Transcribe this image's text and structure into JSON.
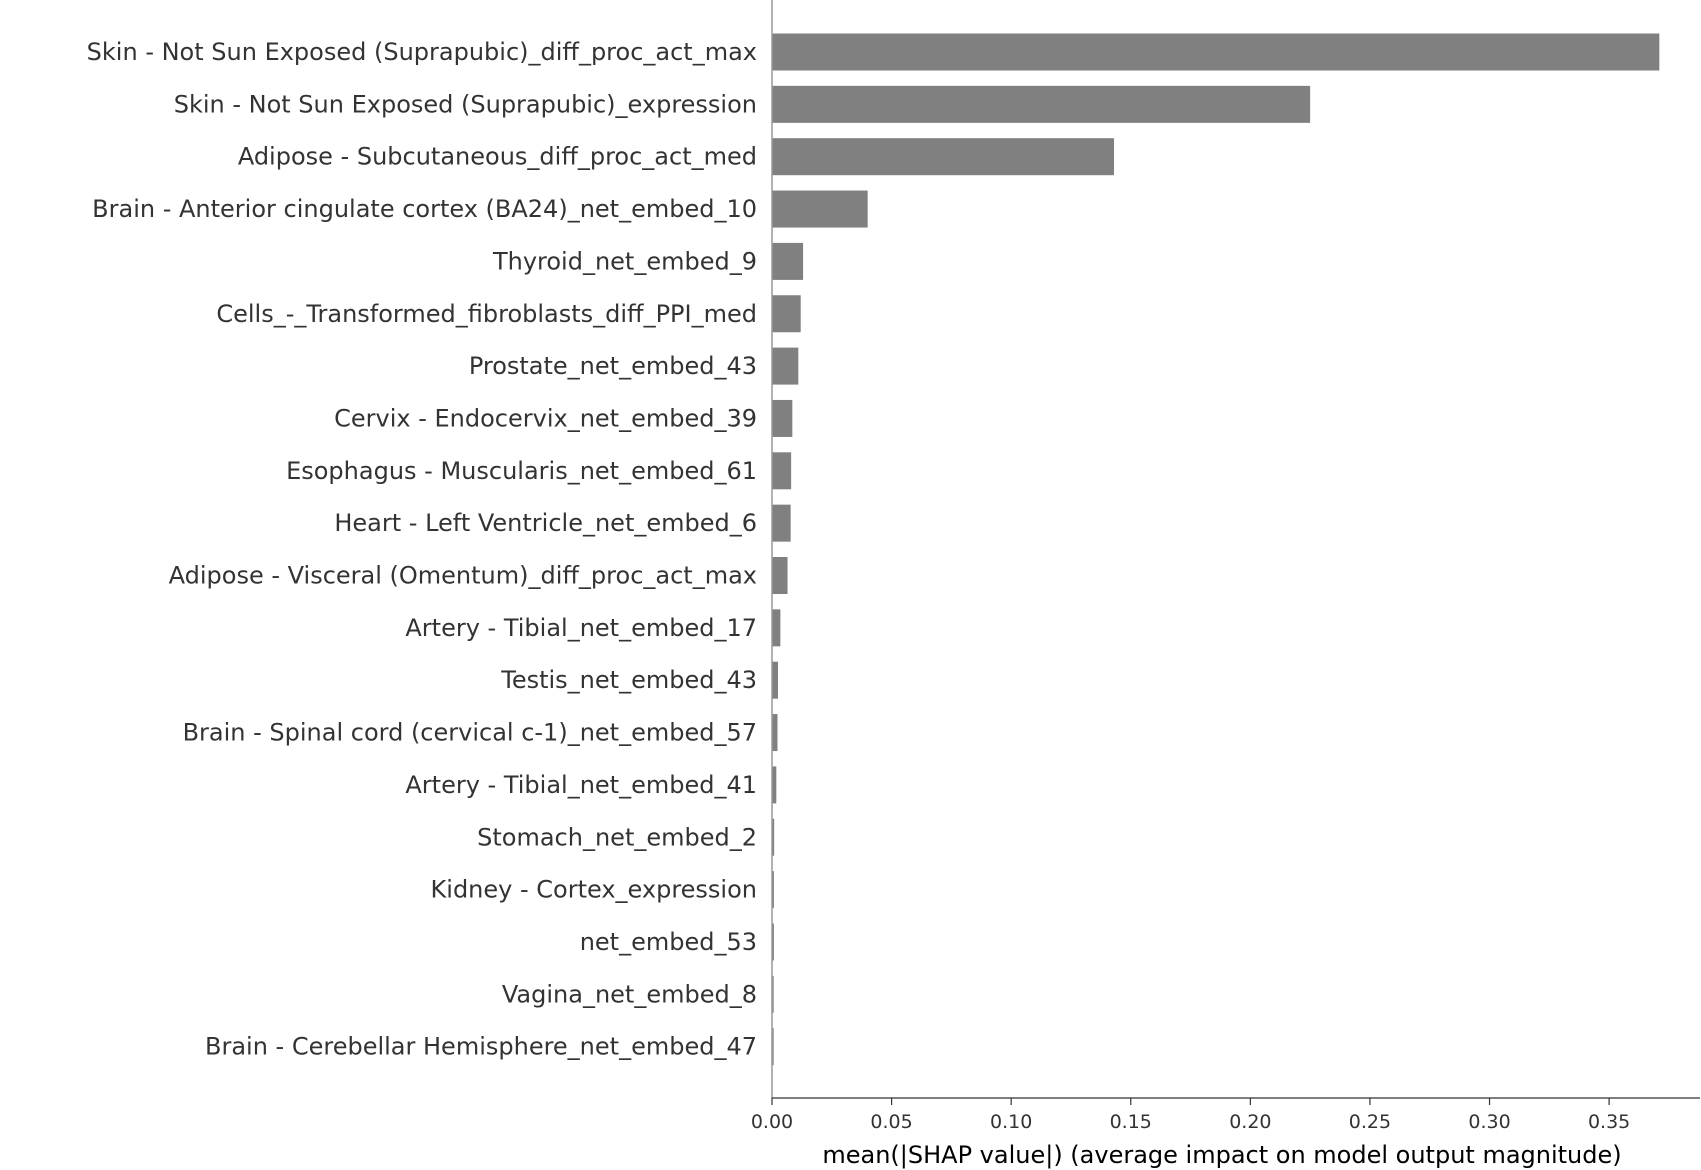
{
  "chart_data": {
    "type": "bar",
    "orientation": "horizontal",
    "title": "",
    "xlabel": "mean(|SHAP value|) (average impact on model output magnitude)",
    "ylabel": "",
    "xlim": [
      0,
      0.388
    ],
    "xticks": [
      0.0,
      0.05,
      0.1,
      0.15,
      0.2,
      0.25,
      0.3,
      0.35
    ],
    "xtick_labels": [
      "0.00",
      "0.05",
      "0.10",
      "0.15",
      "0.20",
      "0.25",
      "0.30",
      "0.35"
    ],
    "grid": false,
    "bar_color": "#808080",
    "categories": [
      "Skin - Not Sun Exposed (Suprapubic)_diff_proc_act_max",
      "Skin - Not Sun Exposed (Suprapubic)_expression",
      "Adipose - Subcutaneous_diff_proc_act_med",
      "Brain - Anterior cingulate cortex (BA24)_net_embed_10",
      "Thyroid_net_embed_9",
      "Cells_-_Transformed_fibroblasts_diff_PPI_med",
      "Prostate_net_embed_43",
      "Cervix - Endocervix_net_embed_39",
      "Esophagus - Muscularis_net_embed_61",
      "Heart - Left Ventricle_net_embed_6",
      "Adipose - Visceral (Omentum)_diff_proc_act_max",
      "Artery - Tibial_net_embed_17",
      "Testis_net_embed_43",
      "Brain - Spinal cord (cervical c-1)_net_embed_57",
      "Artery - Tibial_net_embed_41",
      "Stomach_net_embed_2",
      "Kidney - Cortex_expression",
      "net_embed_53",
      "Vagina_net_embed_8",
      "Brain - Cerebellar Hemisphere_net_embed_47"
    ],
    "values": [
      0.371,
      0.225,
      0.143,
      0.04,
      0.013,
      0.012,
      0.011,
      0.0085,
      0.008,
      0.0078,
      0.0065,
      0.0035,
      0.0025,
      0.0023,
      0.0018,
      0.0009,
      0.0008,
      0.0008,
      0.0007,
      0.0007
    ]
  }
}
